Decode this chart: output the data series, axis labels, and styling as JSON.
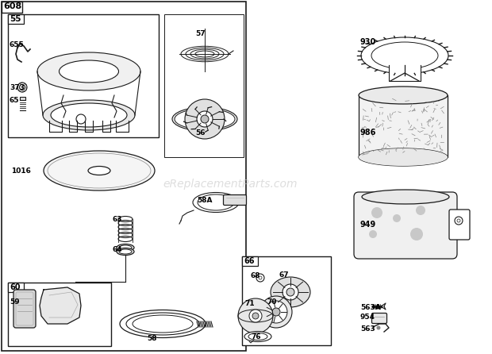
{
  "bg_color": "#ffffff",
  "line_color": "#1a1a1a",
  "watermark": "eReplacementParts.com",
  "watermark_color": "#c8c8c8",
  "figsize": [
    6.2,
    4.46
  ],
  "dpi": 100
}
